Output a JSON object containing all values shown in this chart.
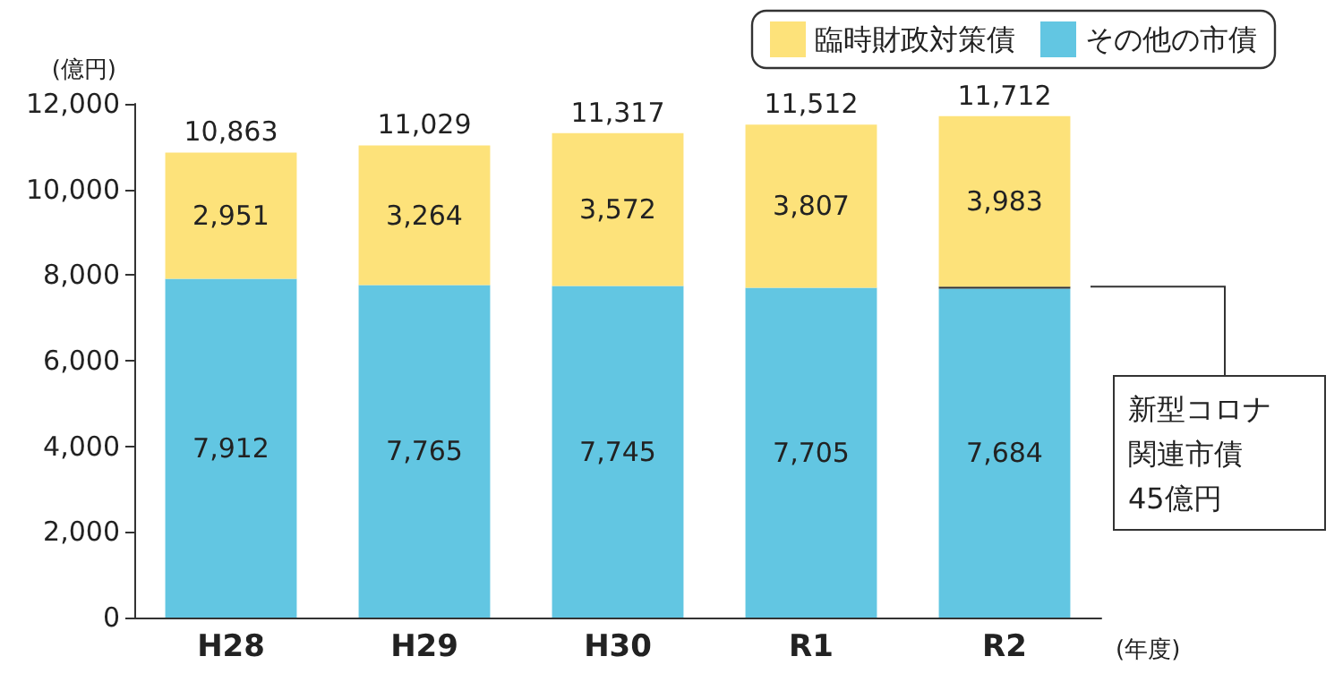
{
  "chart_data": {
    "type": "bar",
    "stacked": true,
    "ylabel": "(億円)",
    "xlabel": "(年度)",
    "categories": [
      "H28",
      "H29",
      "H30",
      "R1",
      "R2"
    ],
    "series": [
      {
        "name": "その他の市債",
        "color": "#62c6e2",
        "values": [
          7912,
          7765,
          7745,
          7705,
          7684
        ],
        "value_labels": [
          "7,912",
          "7,765",
          "7,745",
          "7,705",
          "7,684"
        ]
      },
      {
        "color": "#b4b4b4",
        "values": [
          null,
          null,
          null,
          null,
          45
        ]
      },
      {
        "name": "臨時財政対策債",
        "color": "#fde27a",
        "values": [
          2951,
          3264,
          3572,
          3807,
          3983
        ],
        "value_labels": [
          "2,951",
          "3,264",
          "3,572",
          "3,807",
          "3,983"
        ]
      }
    ],
    "totals": [
      "10,863",
      "11,029",
      "11,317",
      "11,512",
      "11,712"
    ],
    "annotations": [
      "新型コロナ関連市債45億円"
    ],
    "ylim": [
      0,
      12000
    ],
    "yticks": [
      0,
      {
        "value": 2000,
        "label": "2,000"
      },
      {
        "value": 4000,
        "label": "4,000"
      },
      {
        "value": 6000,
        "label": "6,000"
      },
      {
        "value": 8000,
        "label": "8,000"
      },
      {
        "value": 10000,
        "label": "10,000"
      },
      {
        "value": 12000,
        "label": "12,000"
      }
    ],
    "grid": false,
    "legend": "top right"
  }
}
